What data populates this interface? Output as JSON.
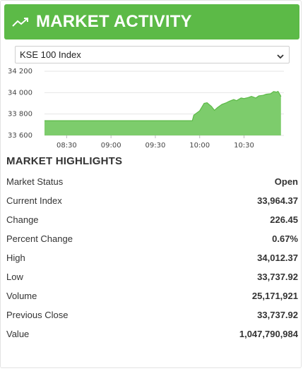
{
  "header": {
    "title": "MARKET ACTIVITY",
    "icon": "trending-up-icon",
    "color": "#5cba47"
  },
  "index_select": {
    "selected": "KSE 100 Index"
  },
  "chart_data": {
    "type": "area",
    "title": "",
    "xlabel": "",
    "ylabel": "",
    "x_ticks": [
      "08:30",
      "09:00",
      "09:30",
      "10:00",
      "10:30"
    ],
    "y_ticks": [
      "34 200",
      "34 000",
      "33 800",
      "33 600"
    ],
    "ylim": [
      33600,
      34200
    ],
    "grid": true,
    "fill_color": "#7dcc6c",
    "line_color": "#5cba47",
    "series": [
      {
        "x": [
          "08:15",
          "09:55",
          "09:56",
          "10:00",
          "10:03",
          "10:05",
          "10:08",
          "10:10",
          "10:12",
          "10:15",
          "10:18",
          "10:20",
          "10:23",
          "10:25",
          "10:28",
          "10:30",
          "10:33",
          "10:35",
          "10:38",
          "10:40",
          "10:43",
          "10:45",
          "10:48",
          "10:50",
          "10:52",
          "10:53",
          "10:54",
          "10:55"
        ],
        "values": [
          33738,
          33738,
          33790,
          33830,
          33900,
          33905,
          33870,
          33835,
          33860,
          33890,
          33905,
          33920,
          33935,
          33925,
          33950,
          33945,
          33955,
          33965,
          33950,
          33970,
          33975,
          33985,
          33990,
          34010,
          34005,
          34012,
          33990,
          33964
        ]
      }
    ]
  },
  "highlights": {
    "title": "MARKET HIGHLIGHTS",
    "rows": [
      {
        "label": "Market Status",
        "value": "Open"
      },
      {
        "label": "Current Index",
        "value": "33,964.37"
      },
      {
        "label": "Change",
        "value": "226.45"
      },
      {
        "label": "Percent Change",
        "value": "0.67%"
      },
      {
        "label": "High",
        "value": "34,012.37"
      },
      {
        "label": "Low",
        "value": "33,737.92"
      },
      {
        "label": "Volume",
        "value": "25,171,921"
      },
      {
        "label": "Previous Close",
        "value": "33,737.92"
      },
      {
        "label": "Value",
        "value": "1,047,790,984"
      }
    ]
  }
}
